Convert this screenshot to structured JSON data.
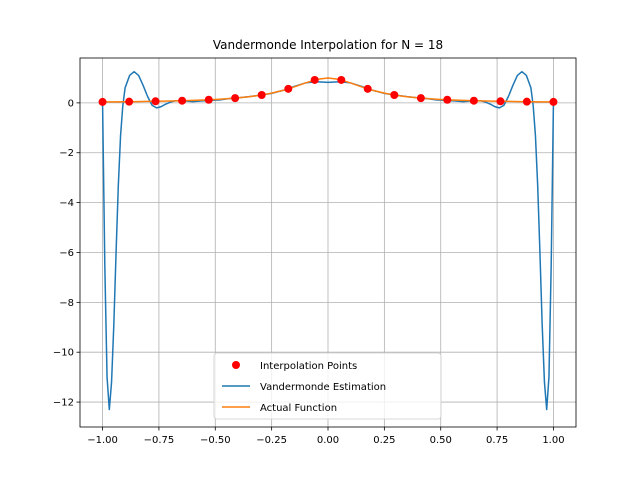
{
  "chart_data": {
    "type": "line",
    "title": "Vandermonde Interpolation for N = 18",
    "xlabel": "",
    "ylabel": "",
    "xlim": [
      -1.1,
      1.1
    ],
    "ylim": [
      -13.0,
      1.8
    ],
    "grid": true,
    "x_ticks": [
      -1.0,
      -0.75,
      -0.5,
      -0.25,
      0.0,
      0.25,
      0.5,
      0.75,
      1.0
    ],
    "x_tick_labels": [
      "−1.00",
      "−0.75",
      "−0.50",
      "−0.25",
      "0.00",
      "0.25",
      "0.50",
      "0.75",
      "1.00"
    ],
    "y_ticks": [
      -12,
      -10,
      -8,
      -6,
      -4,
      -2,
      0
    ],
    "y_tick_labels": [
      "−12",
      "−10",
      "−8",
      "−6",
      "−4",
      "−2",
      "0"
    ],
    "legend_position": "bottom-center",
    "legend": [
      {
        "label": "Interpolation Points",
        "color": "#ff0000",
        "kind": "marker"
      },
      {
        "label": "Vandermonde Estimation",
        "color": "#1f77b4",
        "kind": "line"
      },
      {
        "label": "Actual Function",
        "color": "#ff7f0e",
        "kind": "line"
      }
    ],
    "series": [
      {
        "name": "Interpolation Points",
        "kind": "scatter",
        "color": "#ff0000",
        "x": [
          -1.0,
          -0.882,
          -0.765,
          -0.647,
          -0.529,
          -0.412,
          -0.294,
          -0.176,
          -0.059,
          0.059,
          0.176,
          0.294,
          0.412,
          0.529,
          0.647,
          0.765,
          0.882,
          1.0
        ],
        "y": [
          0.038,
          0.049,
          0.064,
          0.087,
          0.125,
          0.191,
          0.316,
          0.563,
          0.92,
          0.92,
          0.563,
          0.316,
          0.191,
          0.125,
          0.087,
          0.064,
          0.049,
          0.038
        ]
      },
      {
        "name": "Vandermonde Estimation",
        "kind": "line",
        "color": "#1f77b4",
        "x": [
          -1.0,
          -0.99,
          -0.98,
          -0.97,
          -0.96,
          -0.95,
          -0.94,
          -0.93,
          -0.92,
          -0.91,
          -0.9,
          -0.88,
          -0.86,
          -0.84,
          -0.82,
          -0.8,
          -0.78,
          -0.76,
          -0.74,
          -0.72,
          -0.7,
          -0.68,
          -0.66,
          -0.64,
          -0.6,
          -0.56,
          -0.52,
          -0.48,
          -0.44,
          -0.4,
          -0.35,
          -0.3,
          -0.25,
          -0.2,
          -0.15,
          -0.1,
          -0.05,
          0.0,
          0.05,
          0.1,
          0.15,
          0.2,
          0.25,
          0.3,
          0.35,
          0.4,
          0.44,
          0.48,
          0.52,
          0.56,
          0.6,
          0.64,
          0.66,
          0.68,
          0.7,
          0.72,
          0.74,
          0.76,
          0.78,
          0.8,
          0.82,
          0.84,
          0.86,
          0.88,
          0.9,
          0.91,
          0.92,
          0.93,
          0.94,
          0.95,
          0.96,
          0.97,
          0.98,
          0.99,
          1.0
        ],
        "y": [
          0.04,
          -6.5,
          -11.0,
          -12.3,
          -11.2,
          -8.9,
          -6.0,
          -3.3,
          -1.3,
          -0.1,
          0.6,
          1.1,
          1.25,
          1.1,
          0.7,
          0.25,
          -0.1,
          -0.2,
          -0.15,
          -0.05,
          0.03,
          0.08,
          0.09,
          0.08,
          0.05,
          0.08,
          0.1,
          0.12,
          0.17,
          0.2,
          0.25,
          0.31,
          0.38,
          0.5,
          0.66,
          0.8,
          0.85,
          0.82,
          0.85,
          0.8,
          0.66,
          0.5,
          0.38,
          0.31,
          0.25,
          0.2,
          0.17,
          0.12,
          0.1,
          0.08,
          0.05,
          0.08,
          0.09,
          0.08,
          0.03,
          -0.05,
          -0.15,
          -0.2,
          -0.1,
          0.25,
          0.7,
          1.1,
          1.25,
          1.1,
          0.6,
          -0.1,
          -1.3,
          -3.3,
          -6.0,
          -8.9,
          -11.2,
          -12.3,
          -11.0,
          -6.5,
          0.04
        ]
      },
      {
        "name": "Actual Function",
        "kind": "line",
        "color": "#ff7f0e",
        "x": [
          -1.0,
          -0.95,
          -0.9,
          -0.85,
          -0.8,
          -0.75,
          -0.7,
          -0.65,
          -0.6,
          -0.55,
          -0.5,
          -0.45,
          -0.4,
          -0.35,
          -0.3,
          -0.25,
          -0.2,
          -0.15,
          -0.1,
          -0.05,
          0.0,
          0.05,
          0.1,
          0.15,
          0.2,
          0.25,
          0.3,
          0.35,
          0.4,
          0.45,
          0.5,
          0.55,
          0.6,
          0.65,
          0.7,
          0.75,
          0.8,
          0.85,
          0.9,
          0.95,
          1.0
        ],
        "y": [
          0.038,
          0.042,
          0.047,
          0.052,
          0.059,
          0.066,
          0.075,
          0.086,
          0.1,
          0.117,
          0.138,
          0.165,
          0.2,
          0.246,
          0.308,
          0.39,
          0.5,
          0.64,
          0.8,
          0.941,
          1.0,
          0.941,
          0.8,
          0.64,
          0.5,
          0.39,
          0.308,
          0.246,
          0.2,
          0.165,
          0.138,
          0.117,
          0.1,
          0.086,
          0.075,
          0.066,
          0.059,
          0.052,
          0.047,
          0.042,
          0.038
        ]
      }
    ]
  }
}
